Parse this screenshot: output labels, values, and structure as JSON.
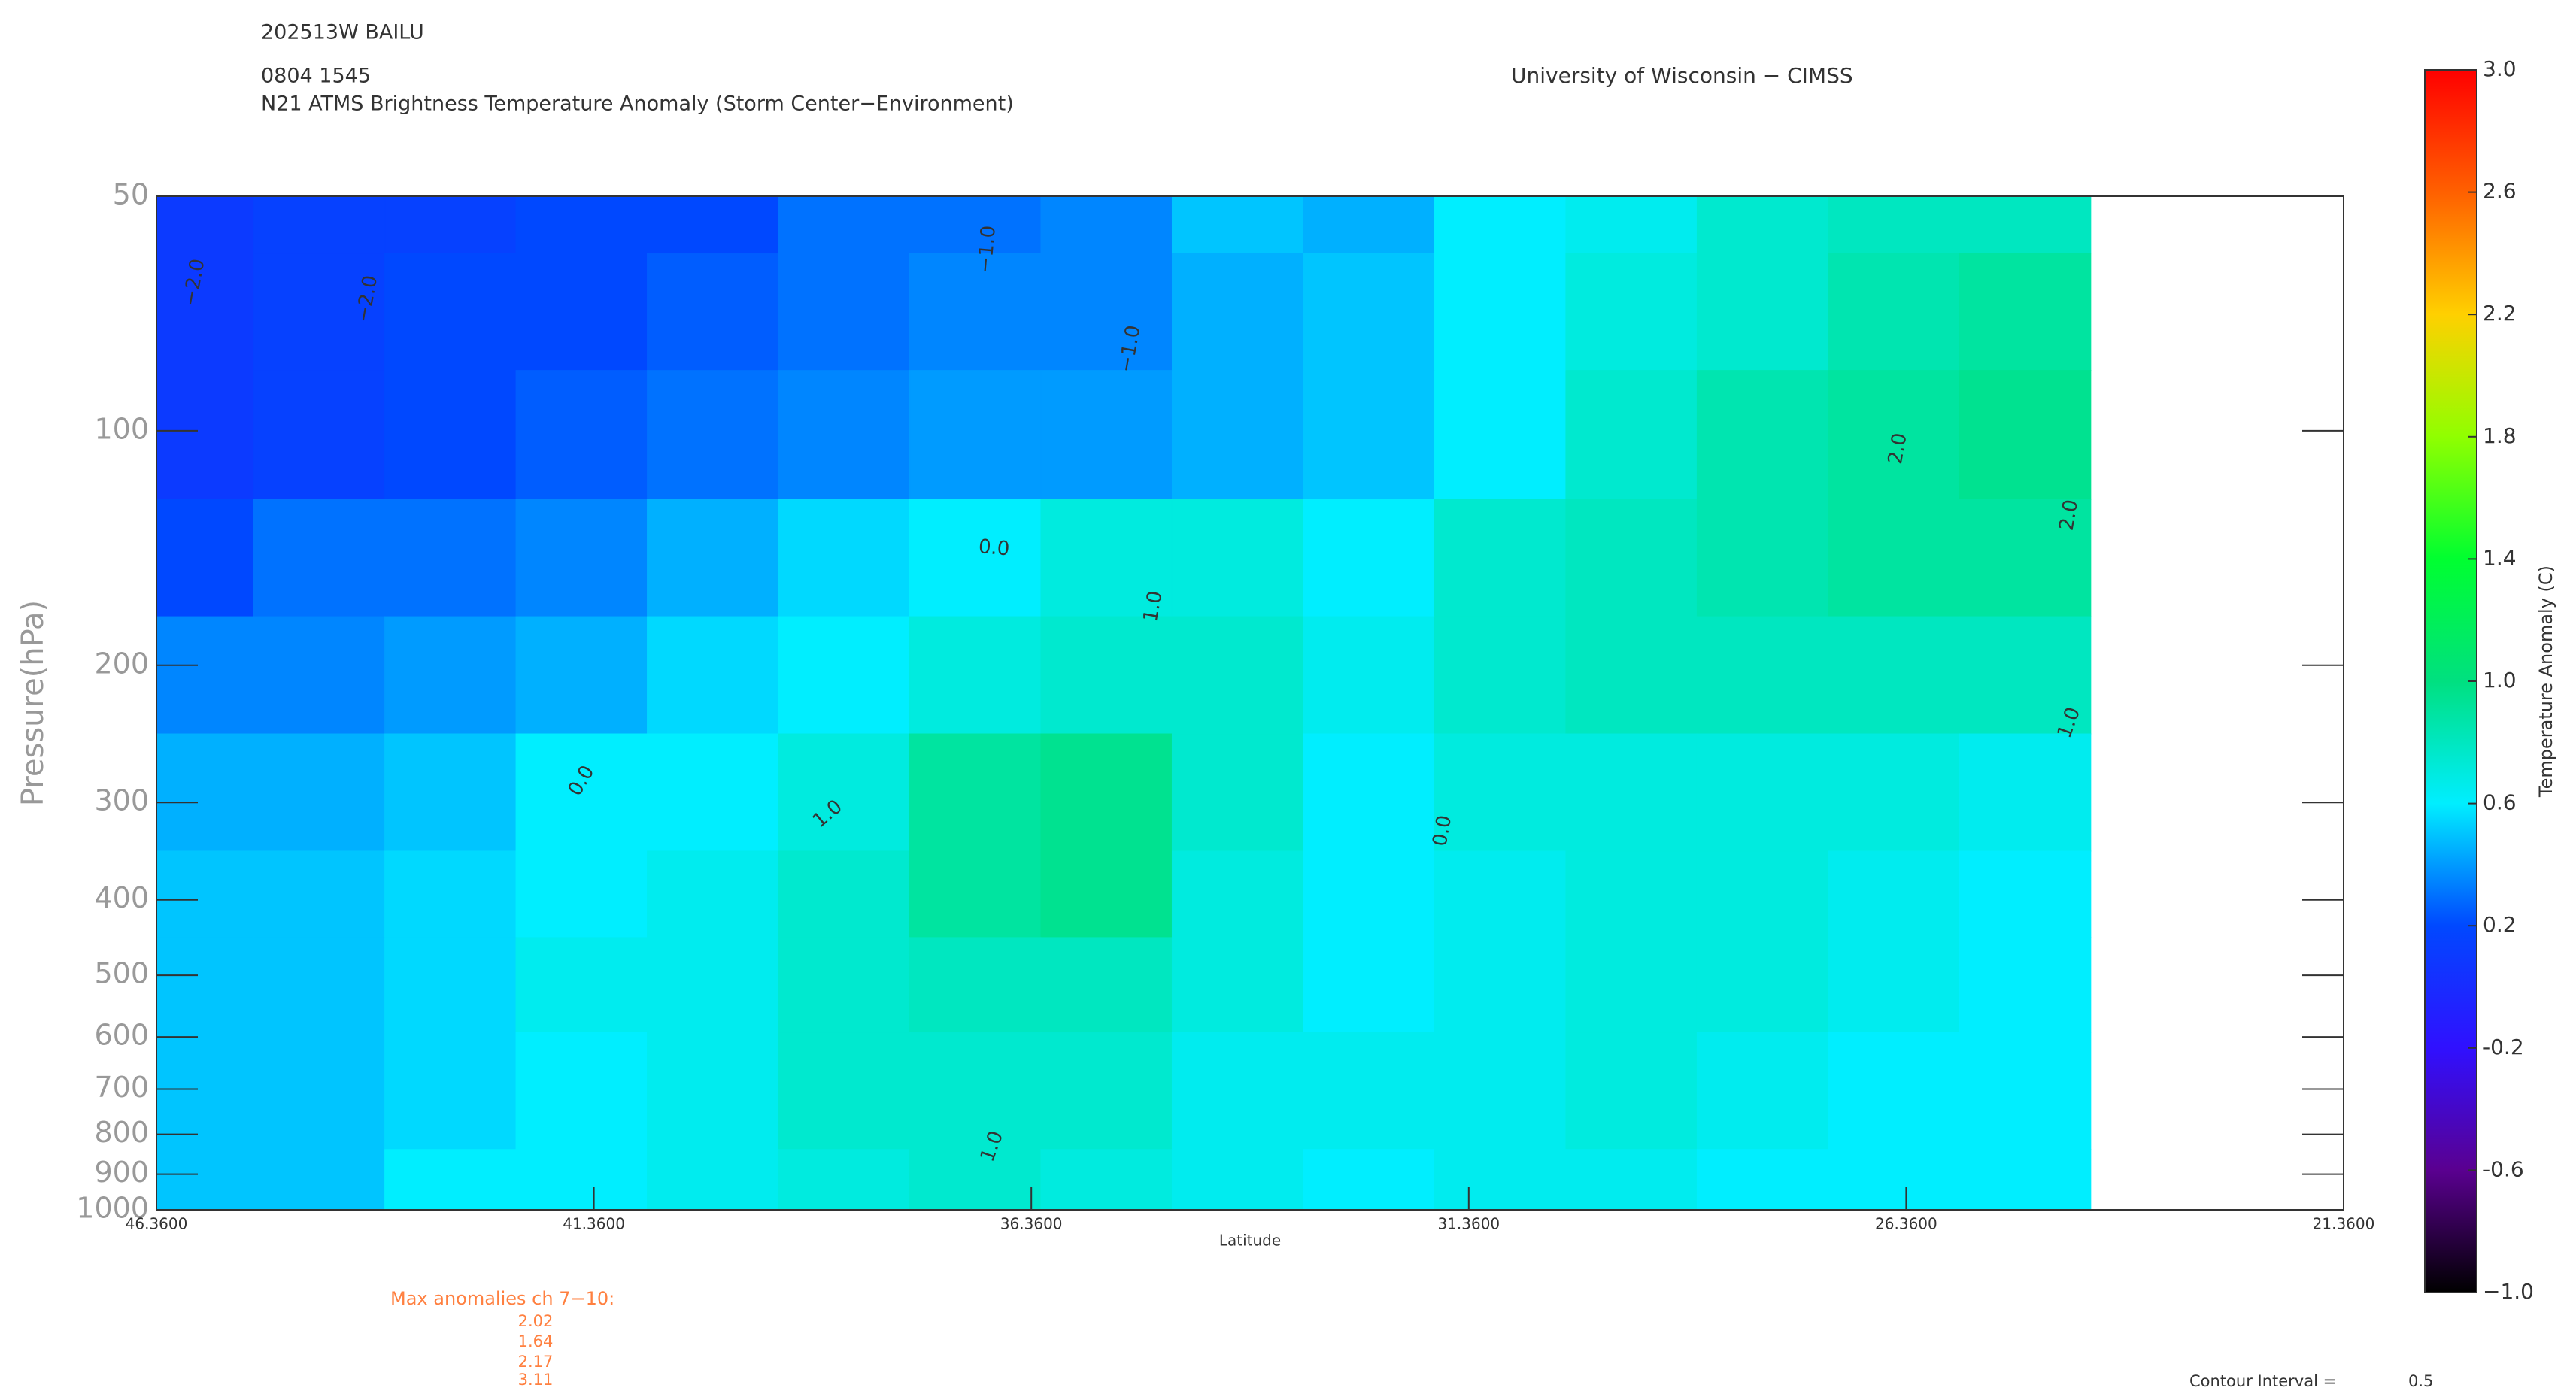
{
  "chart_data": {
    "type": "contour",
    "storm": "202513W BAILU",
    "time": "0804 1545",
    "title": "N21 ATMS Brightness Temperature Anomaly (Storm Center−Environment)",
    "source": "University of Wisconsin − CIMSS",
    "y_label": "Pressure(hPa)",
    "x_label": "Latitude",
    "colorbar_label": "Temperature Anomaly (C)",
    "x": [
      46,
      44.5,
      43,
      41.5,
      40,
      38.5,
      37,
      35.5,
      34,
      32.5,
      31,
      29.5,
      28,
      26.5,
      25
    ],
    "y": [
      50,
      70,
      100,
      150,
      200,
      300,
      400,
      500,
      700,
      1000
    ],
    "z": [
      [
        0.1,
        0.15,
        0.15,
        0.2,
        0.2,
        0.3,
        0.3,
        0.35,
        0.5,
        0.45,
        0.6,
        0.65,
        0.75,
        0.8,
        0.8
      ],
      [
        0.1,
        0.15,
        0.2,
        0.2,
        0.25,
        0.3,
        0.35,
        0.35,
        0.45,
        0.5,
        0.6,
        0.7,
        0.75,
        0.85,
        0.9
      ],
      [
        0.1,
        0.15,
        0.2,
        0.25,
        0.3,
        0.35,
        0.4,
        0.4,
        0.45,
        0.5,
        0.6,
        0.75,
        0.85,
        0.9,
        0.95
      ],
      [
        0.2,
        0.3,
        0.3,
        0.35,
        0.45,
        0.55,
        0.6,
        0.7,
        0.7,
        0.6,
        0.75,
        0.8,
        0.85,
        0.9,
        0.9
      ],
      [
        0.35,
        0.35,
        0.4,
        0.45,
        0.55,
        0.6,
        0.7,
        0.75,
        0.75,
        0.65,
        0.75,
        0.8,
        0.8,
        0.8,
        0.8
      ],
      [
        0.45,
        0.45,
        0.5,
        0.6,
        0.6,
        0.7,
        0.9,
        0.95,
        0.75,
        0.6,
        0.7,
        0.7,
        0.7,
        0.7,
        0.65
      ],
      [
        0.5,
        0.5,
        0.55,
        0.6,
        0.65,
        0.75,
        0.9,
        0.95,
        0.7,
        0.6,
        0.65,
        0.7,
        0.7,
        0.65,
        0.6
      ],
      [
        0.5,
        0.5,
        0.55,
        0.65,
        0.65,
        0.75,
        0.8,
        0.8,
        0.7,
        0.6,
        0.65,
        0.7,
        0.7,
        0.65,
        0.6
      ],
      [
        0.5,
        0.5,
        0.55,
        0.6,
        0.65,
        0.75,
        0.75,
        0.75,
        0.65,
        0.65,
        0.65,
        0.7,
        0.65,
        0.6,
        0.6
      ],
      [
        0.5,
        0.5,
        0.6,
        0.6,
        0.65,
        0.7,
        0.75,
        0.7,
        0.65,
        0.6,
        0.65,
        0.65,
        0.6,
        0.6,
        0.6
      ]
    ],
    "xlim": [
      46.36,
      21.36
    ],
    "xticks": [
      {
        "value": 46.36,
        "label": "46.3600"
      },
      {
        "value": 41.36,
        "label": "41.3600"
      },
      {
        "value": 36.36,
        "label": "36.3600"
      },
      {
        "value": 31.36,
        "label": "31.3600"
      },
      {
        "value": 26.36,
        "label": "26.3600"
      },
      {
        "value": 21.36,
        "label": "21.3600"
      }
    ],
    "ylim": [
      50,
      1000
    ],
    "yscale": "log",
    "yticks": [
      50,
      100,
      200,
      300,
      400,
      500,
      600,
      700,
      800,
      900,
      1000
    ],
    "clim": [
      -1,
      3
    ],
    "cticks": [
      {
        "value": -1,
        "label": "−1.0"
      },
      -0.6,
      -0.2,
      0.2,
      0.6,
      {
        "value": 1,
        "label": "1.0"
      },
      1.4,
      1.8,
      2.2,
      2.6,
      {
        "value": 3,
        "label": "3.0"
      }
    ],
    "colormap": [
      "#000000",
      "#5a0090",
      "#3010ff",
      "#0048ff",
      "#00eeff",
      "#00e080",
      "#00ff30",
      "#90ff00",
      "#ffd000",
      "#ff6000",
      "#ff0000"
    ],
    "contour_labels": [
      "−2.0",
      "−2.0",
      "−1.0",
      "−1.0",
      "0.0",
      "0.0",
      "0.0",
      "1.0",
      "1.0",
      "1.0",
      "2.0",
      "2.0",
      "1.0"
    ],
    "max_anomalies_label": "Max anomalies ch 7−10:",
    "max_anomalies": [
      2.02,
      1.64,
      2.17,
      3.11
    ],
    "contour_interval_label": "Contour Interval =",
    "contour_interval": 0.5
  }
}
